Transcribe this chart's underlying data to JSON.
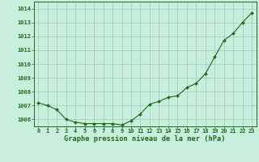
{
  "x": [
    0,
    1,
    2,
    3,
    4,
    5,
    6,
    7,
    8,
    9,
    10,
    11,
    12,
    13,
    14,
    15,
    16,
    17,
    18,
    19,
    20,
    21,
    22,
    23
  ],
  "y": [
    1007.2,
    1007.0,
    1006.7,
    1006.0,
    1005.8,
    1005.7,
    1005.7,
    1005.7,
    1005.7,
    1005.6,
    1005.9,
    1006.4,
    1007.1,
    1007.3,
    1007.6,
    1007.7,
    1008.3,
    1008.6,
    1009.3,
    1010.5,
    1011.7,
    1012.2,
    1013.0,
    1013.7
  ],
  "ylim": [
    1005.5,
    1014.5
  ],
  "yticks": [
    1006,
    1007,
    1008,
    1009,
    1010,
    1011,
    1012,
    1013,
    1014
  ],
  "line_color": "#1a6b1a",
  "marker_color": "#1a6b1a",
  "bg_color": "#c8eedd",
  "grid_color": "#99ccbb",
  "xlabel": "Graphe pression niveau de la mer (hPa)",
  "xlabel_color": "#1a6b1a",
  "tick_color": "#1a6b1a",
  "tick_fontsize": 5.0,
  "xlabel_fontsize": 6.2,
  "xlim": [
    -0.5,
    23.5
  ]
}
